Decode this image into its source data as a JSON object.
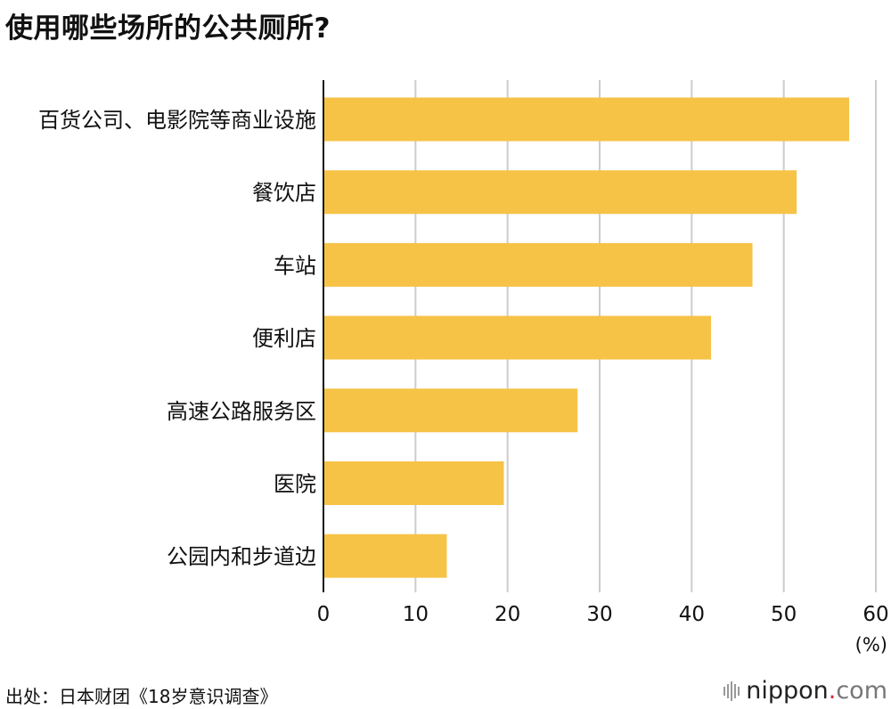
{
  "title": "使用哪些场所的公共厕所?",
  "source": "出处：日本财团《18岁意识调查》",
  "brand": {
    "name": "nippon",
    "dot": ".",
    "suffix": "com",
    "dot_color": "#d7282f"
  },
  "colors": {
    "bar": "#f6c347",
    "grid": "#cccccc",
    "axis": "#111111"
  },
  "chart_data": {
    "type": "bar",
    "orientation": "horizontal",
    "categories": [
      "百货公司、电影院等商业设施",
      "餐饮店",
      "车站",
      "便利店",
      "高速公路服务区",
      "医院",
      "公园内和步道边"
    ],
    "values": [
      57.1,
      51.4,
      46.6,
      42.1,
      27.6,
      19.6,
      13.4
    ],
    "xlim": [
      0,
      60
    ],
    "xticks": [
      "0",
      "10",
      "20",
      "30",
      "40",
      "50",
      "60"
    ],
    "unit": "(%)",
    "grid": true
  }
}
